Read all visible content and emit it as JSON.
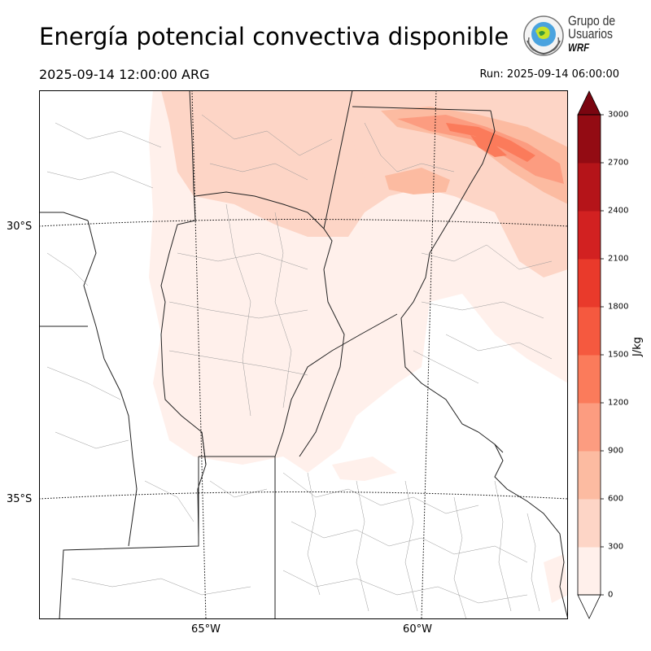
{
  "header": {
    "title": "Energía potencial convectiva disponible",
    "valid_time": "2025-09-14 12:00:00 ARG",
    "run_time": "Run: 2025-09-14 06:00:00"
  },
  "logo": {
    "line1": "Grupo de",
    "line2": "Usuarios",
    "line3": "WRF"
  },
  "map": {
    "lat_labels": [
      "30°S",
      "35°S"
    ],
    "lon_labels": [
      "65°W",
      "60°W"
    ],
    "field": "CAPE",
    "highest_values_region": "northeast"
  },
  "colorbar": {
    "unit": "J/kg",
    "ticks": [
      "0",
      "300",
      "600",
      "900",
      "1200",
      "1500",
      "1800",
      "2100",
      "2400",
      "2700",
      "3000"
    ],
    "levels": [
      0,
      300,
      600,
      900,
      1200,
      1500,
      1800,
      2100,
      2400,
      2700,
      3000
    ],
    "colors": [
      "#fff0eb",
      "#fdd5c6",
      "#fcbba1",
      "#fc9c80",
      "#fb7b5b",
      "#f5593f",
      "#e93a2b",
      "#d22121",
      "#b51419",
      "#930b13"
    ],
    "under_color": "#ffffff",
    "over_color": "#7a0510"
  }
}
